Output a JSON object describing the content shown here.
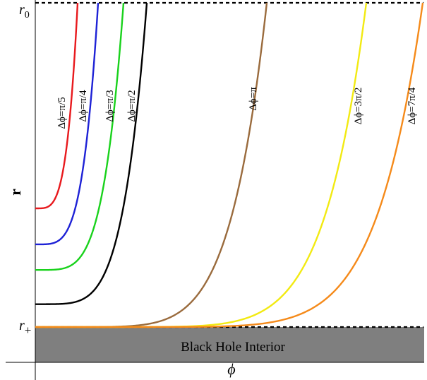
{
  "figure": {
    "y_axis_label": "r",
    "x_axis_label": "ϕ",
    "r0_label": "r",
    "r0_sub": "0",
    "rplus_label": "r",
    "rplus_sub": "+",
    "region_label": "Black Hole Interior"
  },
  "curves": [
    {
      "label": "Δϕ=π/5",
      "color": "#e8191d",
      "r_min": 0.366
    },
    {
      "label": "Δϕ=π/4",
      "color": "#1e22d6",
      "r_min": 0.255
    },
    {
      "label": "Δϕ=π/3",
      "color": "#19d21c",
      "r_min": 0.176
    },
    {
      "label": "Δϕ=π/2",
      "color": "#000000",
      "r_min": 0.0705
    },
    {
      "label": "Δϕ=π",
      "color": "#9a6b3d",
      "r_min": 0.0
    },
    {
      "label": "Δϕ=3π/2",
      "color": "#f2ea12",
      "r_min": 0.0
    },
    {
      "label": "Δϕ=7π/4",
      "color": "#f58a1a",
      "r_min": 0.0
    }
  ]
}
